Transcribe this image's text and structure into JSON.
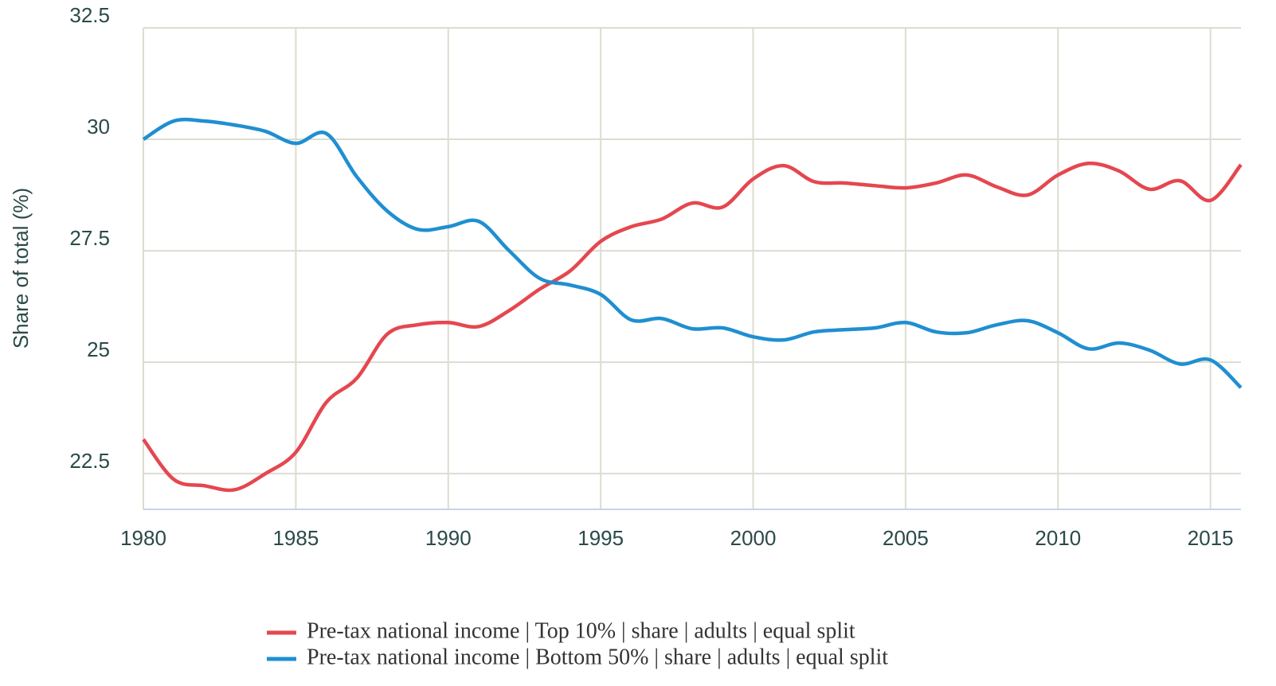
{
  "chart_data": {
    "type": "line",
    "y_label": "Share of total (%)",
    "x": [
      1980,
      1981,
      1982,
      1983,
      1984,
      1985,
      1986,
      1987,
      1988,
      1989,
      1990,
      1991,
      1992,
      1993,
      1994,
      1995,
      1996,
      1997,
      1998,
      1999,
      2000,
      2001,
      2002,
      2003,
      2004,
      2005,
      2006,
      2007,
      2008,
      2009,
      2010,
      2011,
      2012,
      2013,
      2014,
      2015,
      2016
    ],
    "series": [
      {
        "name": "Pre-tax national income | Top 10% | share | adults | equal split",
        "color": "#e5474f",
        "values": [
          23.27,
          22.37,
          22.23,
          22.14,
          22.5,
          22.98,
          24.1,
          24.64,
          25.63,
          25.84,
          25.89,
          25.8,
          26.16,
          26.64,
          27.05,
          27.71,
          28.04,
          28.21,
          28.57,
          28.48,
          29.11,
          29.41,
          29.05,
          29.02,
          28.96,
          28.91,
          29.02,
          29.2,
          28.93,
          28.75,
          29.2,
          29.46,
          29.29,
          28.88,
          29.07,
          28.63,
          29.43
        ]
      },
      {
        "name": "Pre-tax national income | Bottom 50% | share | adults | equal split",
        "color": "#1f8fd1",
        "values": [
          30.0,
          30.41,
          30.41,
          30.32,
          30.18,
          29.91,
          30.13,
          29.16,
          28.39,
          27.98,
          28.04,
          28.16,
          27.5,
          26.88,
          26.73,
          26.52,
          25.95,
          25.98,
          25.75,
          25.77,
          25.57,
          25.5,
          25.68,
          25.73,
          25.77,
          25.89,
          25.68,
          25.66,
          25.84,
          25.93,
          25.66,
          25.3,
          25.43,
          25.27,
          24.96,
          25.05,
          24.43
        ]
      }
    ],
    "xlim": [
      1980,
      2016
    ],
    "xticks": [
      1980,
      1985,
      1990,
      1995,
      2000,
      2005,
      2010,
      2015
    ],
    "ylim": [
      21.7,
      32.5
    ],
    "yticks": [
      22.5,
      25,
      27.5,
      30,
      32.5
    ],
    "grid": true
  }
}
